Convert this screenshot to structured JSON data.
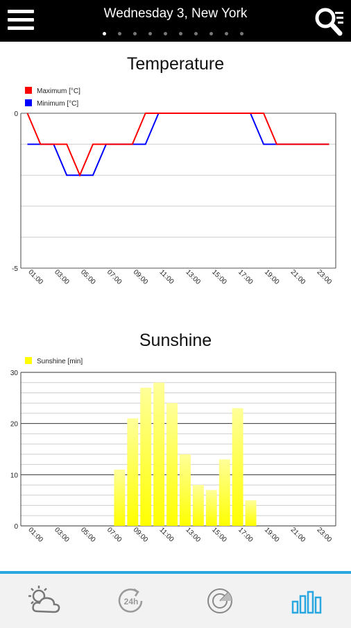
{
  "header": {
    "title": "Wednesday 3, New York",
    "page_count": 10,
    "active_page": 0
  },
  "charts": {
    "temperature": {
      "title": "Temperature",
      "legend": [
        {
          "label": "Maximum [°C]",
          "color": "#ff0000"
        },
        {
          "label": "Minimum [°C]",
          "color": "#0000ff"
        }
      ]
    },
    "sunshine": {
      "title": "Sunshine",
      "legend": [
        {
          "label": "Sunshine [min]",
          "color": "#ffff00"
        }
      ]
    }
  },
  "chart_data": [
    {
      "type": "line",
      "title": "Temperature",
      "x_ticks": [
        "01:00",
        "03:00",
        "05:00",
        "07:00",
        "09:00",
        "11:00",
        "13:00",
        "15:00",
        "17:00",
        "19:00",
        "21:00",
        "23:00"
      ],
      "y_ticks": [
        "0",
        "-5"
      ],
      "ylim": [
        -5,
        0
      ],
      "grid": true,
      "legend_position": "top-left",
      "series": [
        {
          "name": "Maximum [°C]",
          "color": "#ff0000",
          "values": [
            0,
            -1,
            -1,
            -1,
            -2,
            -1,
            -1,
            -1,
            -1,
            0,
            0,
            0,
            0,
            0,
            0,
            0,
            0,
            0,
            0,
            -1,
            -1,
            -1,
            -1,
            -1
          ]
        },
        {
          "name": "Minimum [°C]",
          "color": "#0000ff",
          "values": [
            -1,
            -1,
            -1,
            -2,
            -2,
            -2,
            -1,
            -1,
            -1,
            -1,
            0,
            0,
            0,
            0,
            0,
            0,
            0,
            0,
            -1,
            -1,
            -1,
            -1,
            -1,
            -1
          ]
        }
      ]
    },
    {
      "type": "bar",
      "title": "Sunshine",
      "x_ticks": [
        "01:00",
        "03:00",
        "05:00",
        "07:00",
        "09:00",
        "11:00",
        "13:00",
        "15:00",
        "17:00",
        "19:00",
        "21:00",
        "23:00"
      ],
      "y_ticks": [
        "0",
        "10",
        "20",
        "30"
      ],
      "ylim": [
        0,
        30
      ],
      "grid": true,
      "legend_position": "top-left",
      "series": [
        {
          "name": "Sunshine [min]",
          "color": "#ffff00",
          "values": [
            0,
            0,
            0,
            0,
            0,
            0,
            0,
            11,
            21,
            27,
            28,
            24,
            14,
            8,
            7,
            13,
            23,
            5,
            0,
            0,
            0,
            0,
            0,
            0
          ]
        }
      ]
    }
  ],
  "bottom_nav": {
    "items": [
      {
        "icon": "weather-icon"
      },
      {
        "icon": "forecast-24h-icon",
        "label": "24h"
      },
      {
        "icon": "radar-icon"
      },
      {
        "icon": "charts-icon",
        "active": true
      }
    ],
    "accent_color": "#29a7e0"
  }
}
